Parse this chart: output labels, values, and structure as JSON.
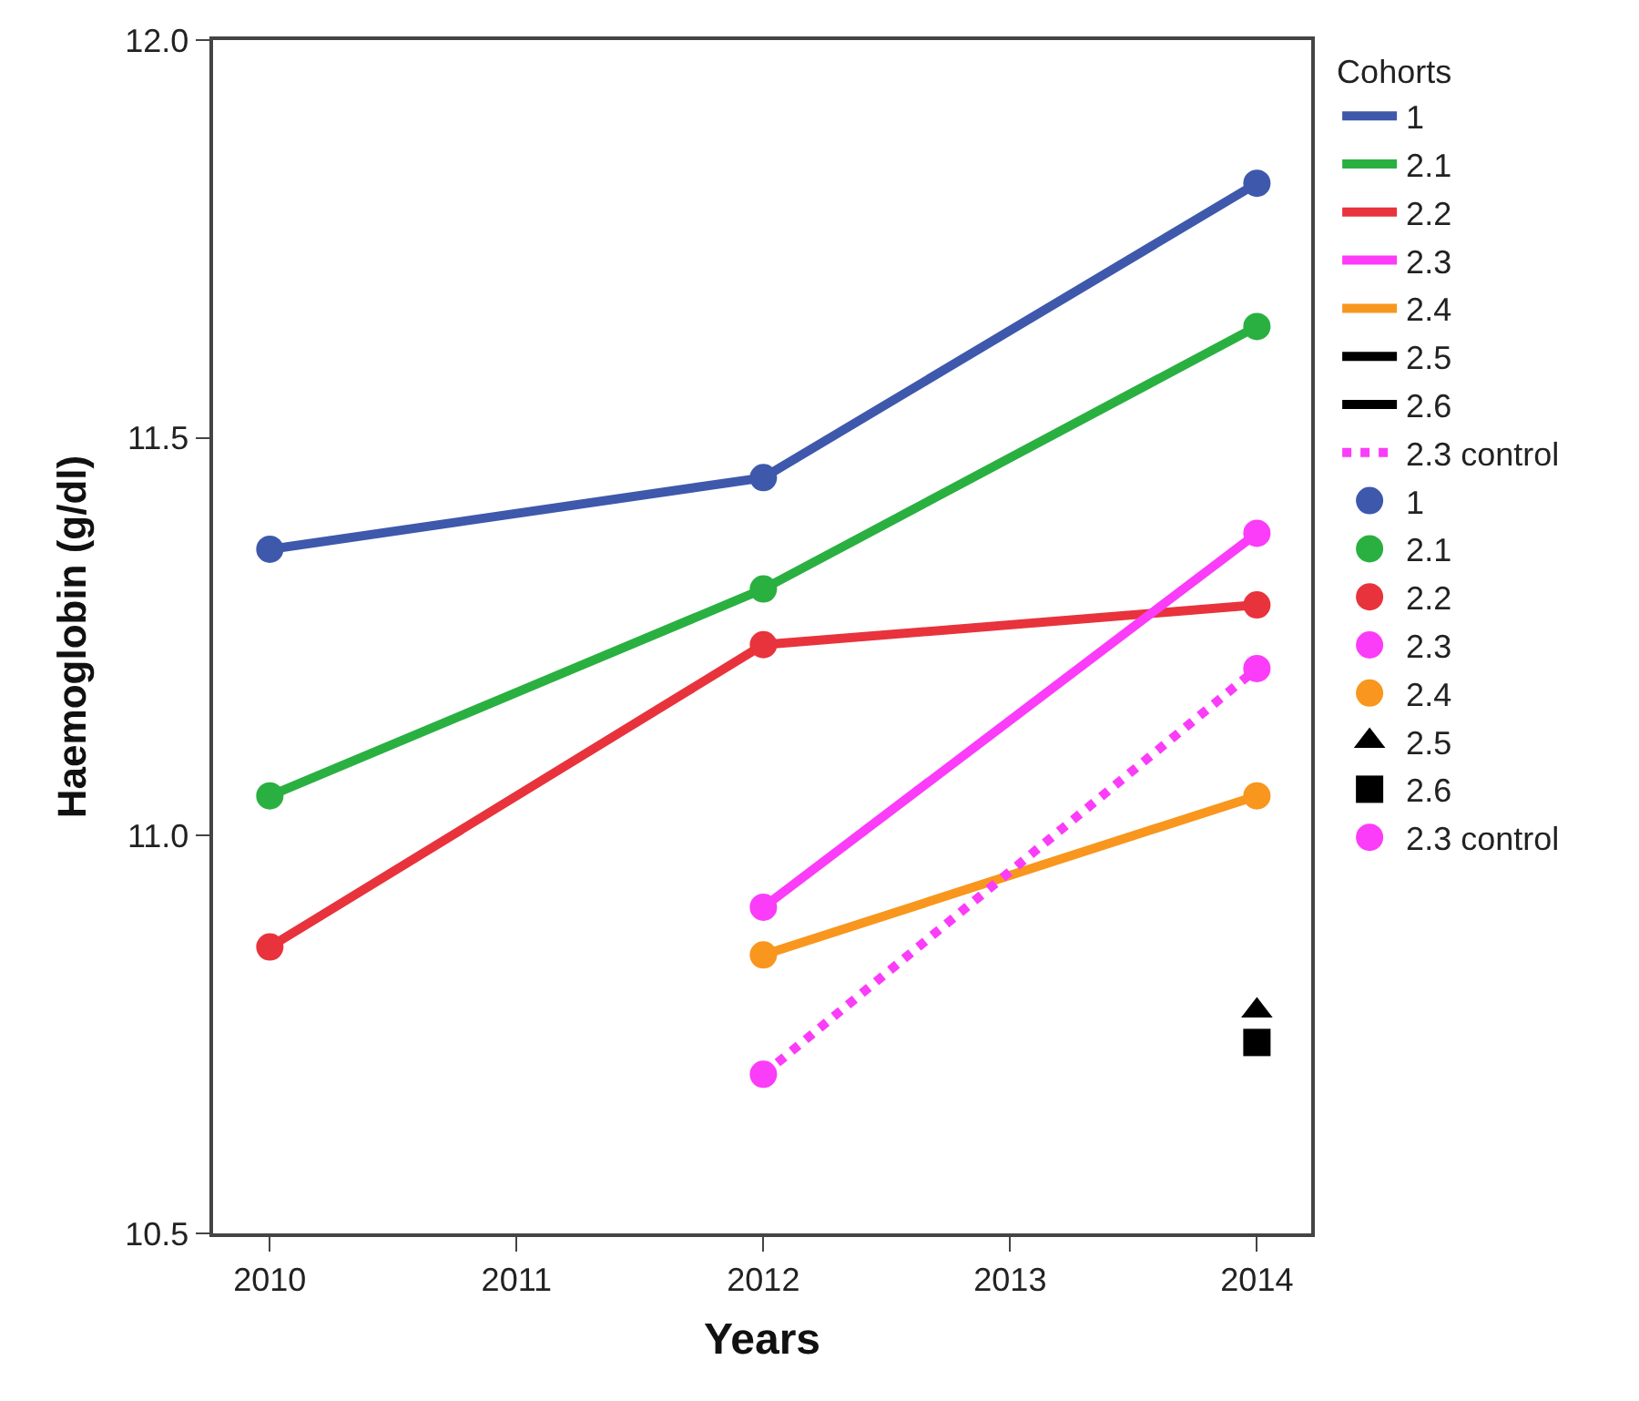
{
  "chart_data": {
    "type": "line",
    "xlabel": "Years",
    "ylabel": "Haemoglobin (g/dl)",
    "legend_title": "Cohorts",
    "x": [
      2010,
      2012,
      2014
    ],
    "series": [
      {
        "name": "1",
        "color": "#3e58ac",
        "values": [
          11.36,
          11.45,
          11.82
        ],
        "marker": "circle",
        "line_style": "solid"
      },
      {
        "name": "2.1",
        "color": "#2ab040",
        "values": [
          11.05,
          11.31,
          11.64
        ],
        "marker": "circle",
        "line_style": "solid"
      },
      {
        "name": "2.2",
        "color": "#e8333c",
        "values": [
          10.86,
          11.24,
          11.29
        ],
        "marker": "circle",
        "line_style": "solid"
      },
      {
        "name": "2.3",
        "color": "#fb3cf9",
        "values": [
          null,
          10.91,
          11.38
        ],
        "marker": "circle",
        "line_style": "solid"
      },
      {
        "name": "2.4",
        "color": "#f8961e",
        "values": [
          null,
          10.85,
          11.05
        ],
        "marker": "circle",
        "line_style": "solid"
      },
      {
        "name": "2.5",
        "color": "#000000",
        "values": [
          null,
          null,
          10.78
        ],
        "marker": "triangle",
        "line_style": "solid"
      },
      {
        "name": "2.6",
        "color": "#000000",
        "values": [
          null,
          null,
          10.74
        ],
        "marker": "square",
        "line_style": "solid"
      },
      {
        "name": "2.3 control",
        "color": "#fb3cf9",
        "values": [
          null,
          10.7,
          11.21
        ],
        "marker": "circle",
        "line_style": "dotted"
      }
    ],
    "xlim": [
      2009.77,
      2014.22
    ],
    "xticks": [
      2010,
      2011,
      2012,
      2013,
      2014
    ],
    "ylim": [
      10.5,
      12.0
    ],
    "yticks": [
      {
        "value": 10.5,
        "label": "10.5"
      },
      {
        "value": 11.0,
        "label": "11.0"
      },
      {
        "value": 11.5,
        "label": "11.5"
      },
      {
        "value": 12.0,
        "label": "12.0"
      }
    ],
    "legend": "right"
  }
}
